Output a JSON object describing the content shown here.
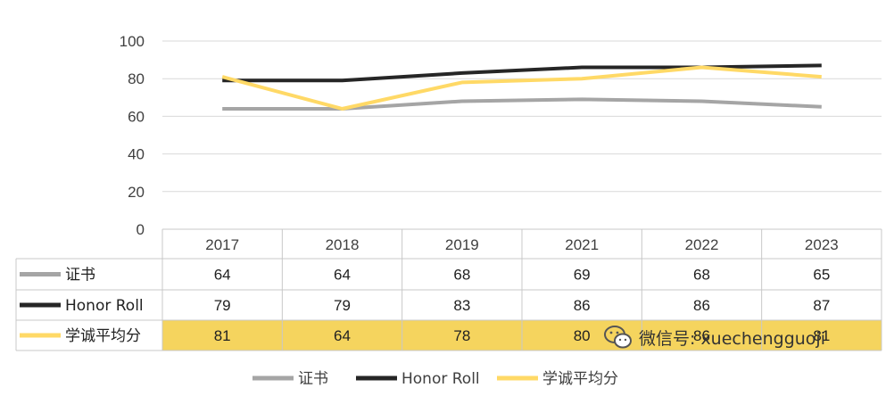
{
  "chart_data": {
    "type": "line",
    "categories": [
      "2017",
      "2018",
      "2019",
      "2021",
      "2022",
      "2023"
    ],
    "ylim": [
      0,
      100
    ],
    "yticks": [
      0,
      20,
      40,
      60,
      80,
      100
    ],
    "grid": true,
    "legend_position": "bottom",
    "data_table": true,
    "series": [
      {
        "name": "证书",
        "color": "#a5a5a5",
        "values": [
          64,
          64,
          68,
          69,
          68,
          65
        ]
      },
      {
        "name": "Honor Roll",
        "color": "#262626",
        "values": [
          79,
          79,
          83,
          86,
          86,
          87
        ]
      },
      {
        "name": "学诚平均分",
        "color": "#ffd966",
        "values": [
          81,
          64,
          78,
          80,
          86,
          81
        ],
        "row_highlight": "#f5d45e"
      }
    ]
  },
  "watermark": {
    "text": "微信号: xuechengguoji",
    "icon": "wechat-icon"
  }
}
